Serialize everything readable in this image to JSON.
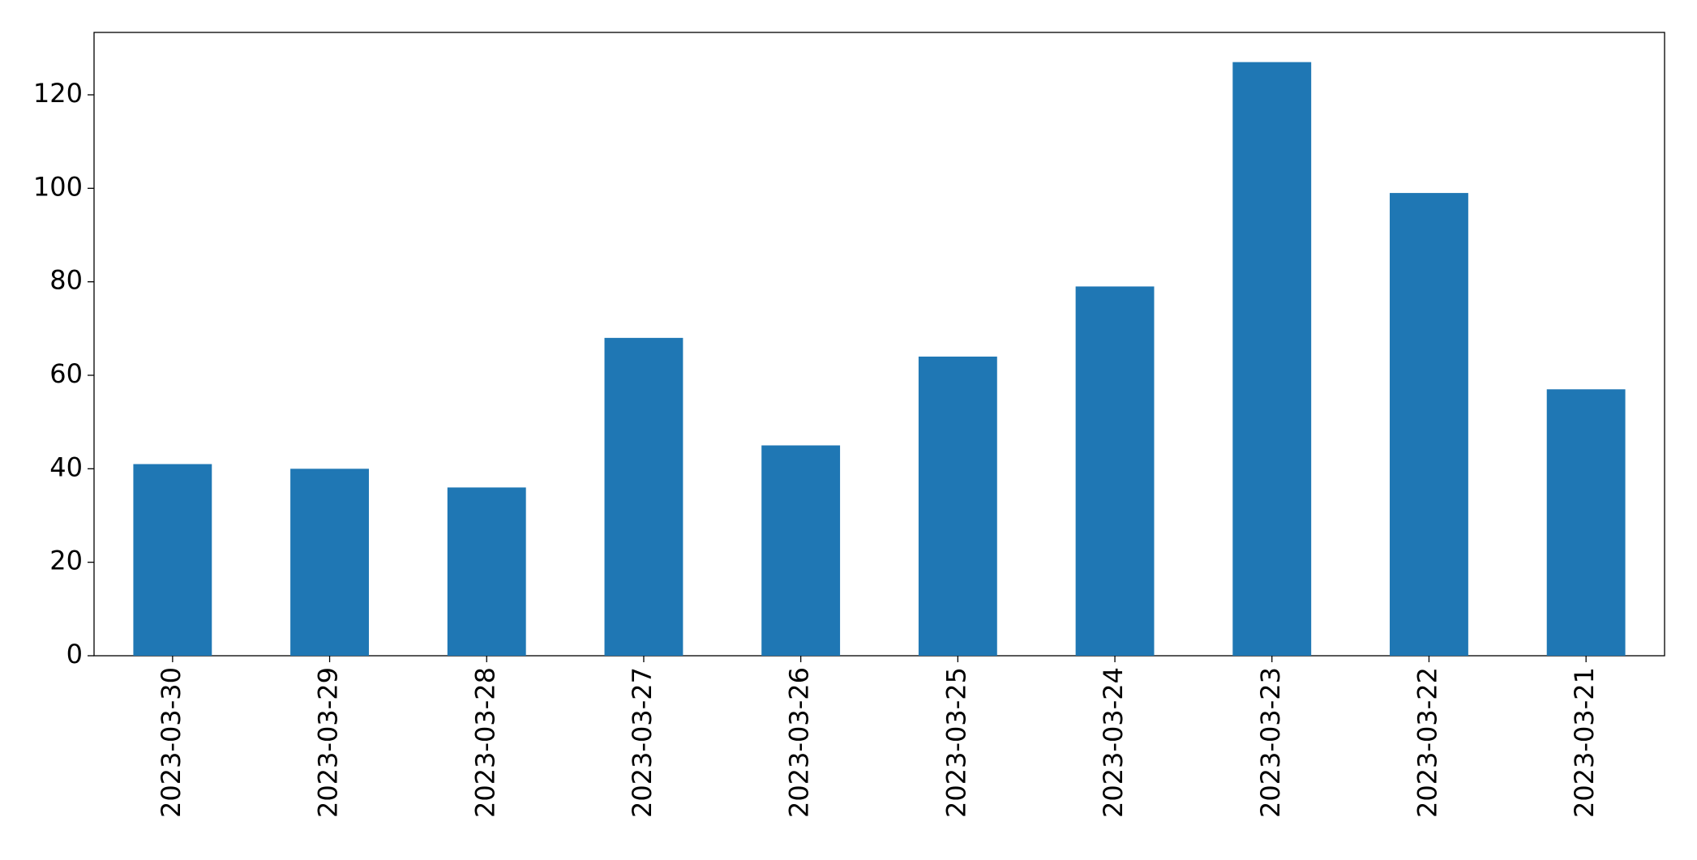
{
  "chart_data": {
    "type": "bar",
    "categories": [
      "2023-03-30",
      "2023-03-29",
      "2023-03-28",
      "2023-03-27",
      "2023-03-26",
      "2023-03-25",
      "2023-03-24",
      "2023-03-23",
      "2023-03-22",
      "2023-03-21"
    ],
    "values": [
      41,
      40,
      36,
      68,
      45,
      64,
      79,
      127,
      99,
      57
    ],
    "color": "#1f77b4",
    "ylim": [
      0,
      133.35
    ],
    "yticks": [
      0,
      20,
      40,
      60,
      80,
      100,
      120
    ],
    "grid": false
  }
}
